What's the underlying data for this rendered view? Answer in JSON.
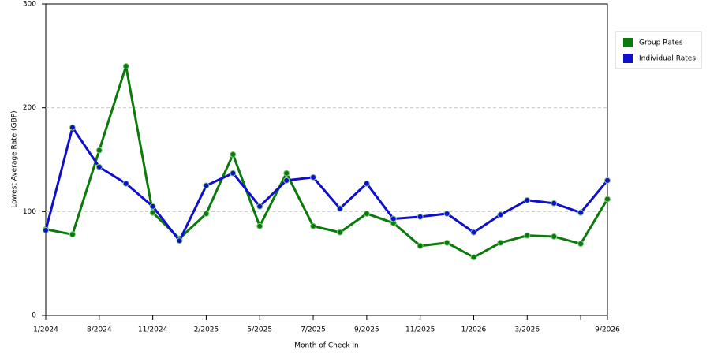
{
  "chart_data": {
    "type": "line",
    "x_label": "Month of Check In",
    "y_label": "Lowest Average Rate (GBP)",
    "categories": [
      "1/2024",
      null,
      "8/2024",
      null,
      "11/2024",
      null,
      "2/2025",
      null,
      "5/2025",
      null,
      "7/2025",
      null,
      "9/2025",
      null,
      "11/2025",
      null,
      "1/2026",
      null,
      "3/2026",
      null,
      null,
      "9/2026"
    ],
    "series": [
      {
        "name": "Group Rates",
        "color": "#0a7a0a",
        "values": [
          83,
          78,
          159,
          240,
          99,
          74,
          98,
          155,
          86,
          137,
          86,
          80,
          98,
          89,
          67,
          70,
          56,
          70,
          77,
          76,
          69,
          112
        ]
      },
      {
        "name": "Individual Rates",
        "color": "#1010cc",
        "values": [
          82,
          181,
          143,
          127,
          105,
          72,
          125,
          137,
          105,
          130,
          133,
          103,
          127,
          93,
          95,
          98,
          80,
          97,
          111,
          108,
          99,
          130
        ]
      }
    ],
    "ylim": [
      0,
      300
    ],
    "yticks": [
      0,
      100,
      200,
      300
    ],
    "grid": true,
    "legend": "right"
  }
}
